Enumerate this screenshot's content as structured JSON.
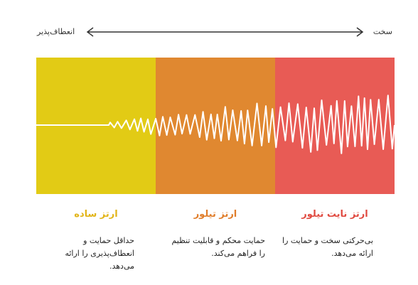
{
  "scale": {
    "left_label": "انعطاف‌پذیر",
    "right_label": "سخت"
  },
  "colors": {
    "yellow": "#e2cb15",
    "orange": "#e08830",
    "red": "#e85b55",
    "wave": "#ffffff",
    "arrow": "#333333"
  },
  "sections": [
    {
      "title": "ارتز ساده",
      "color": "#e2b51a",
      "description": [
        "حداقل حمایت و",
        "انعطاف‌پذیری را ارائه",
        "می‌دهد."
      ]
    },
    {
      "title": "ارتز تیلور",
      "color": "#e07d2a",
      "description": [
        "حمایت محکم و قابلیت تنظیم",
        "را فراهم می‌کند."
      ]
    },
    {
      "title": "ارتز نایت تیلور",
      "color": "#e04a40",
      "description": [
        "بی‌حرکتی سخت و حمایت را",
        "ارائه می‌دهد."
      ]
    }
  ]
}
